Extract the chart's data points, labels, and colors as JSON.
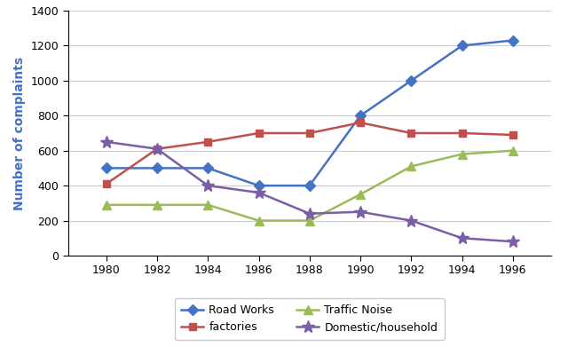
{
  "years": [
    1980,
    1982,
    1984,
    1986,
    1988,
    1990,
    1992,
    1994,
    1996
  ],
  "road_works": [
    500,
    500,
    500,
    400,
    400,
    800,
    1000,
    1200,
    1230
  ],
  "factories": [
    410,
    610,
    650,
    700,
    700,
    760,
    700,
    700,
    690
  ],
  "traffic_noise": [
    290,
    290,
    290,
    200,
    200,
    350,
    510,
    580,
    600
  ],
  "domestic_household": [
    650,
    610,
    400,
    360,
    240,
    250,
    200,
    100,
    80
  ],
  "colors": {
    "road_works": "#4472C4",
    "factories": "#C0504D",
    "traffic_noise": "#9BBB59",
    "domestic_household": "#7B5EA7"
  },
  "markers": {
    "road_works": "D",
    "factories": "s",
    "traffic_noise": "^",
    "domestic_household": "*"
  },
  "ylabel": "Number of complaints",
  "ylabel_color": "#4472C4",
  "ylim": [
    0,
    1400
  ],
  "yticks": [
    0,
    200,
    400,
    600,
    800,
    1000,
    1200,
    1400
  ],
  "xlim": [
    1978.5,
    1997.5
  ],
  "xticks": [
    1980,
    1982,
    1984,
    1986,
    1988,
    1990,
    1992,
    1994,
    1996
  ],
  "legend_labels": [
    "Road Works",
    "factories",
    "Traffic Noise",
    "Domestic/household"
  ],
  "background_color": "#FFFFFF",
  "grid_color": "#CCCCCC"
}
